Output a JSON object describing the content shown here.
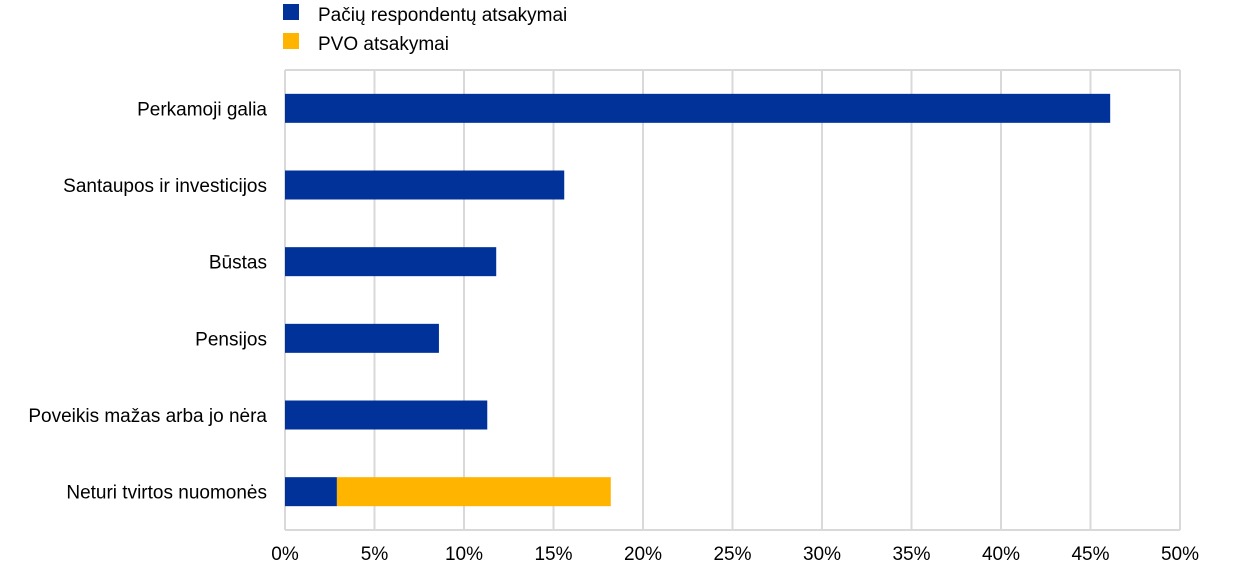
{
  "chart_data": {
    "type": "bar",
    "orientation": "horizontal",
    "stacked": true,
    "categories": [
      "Perkamoji galia",
      "Santaupos ir investicijos",
      "Būstas",
      "Pensijos",
      "Poveikis mažas arba jo nėra",
      "Neturi tvirtos nuomonės"
    ],
    "series": [
      {
        "name": "Pačių respondentų  atsakymai",
        "color": "#003299",
        "values": [
          46.1,
          15.6,
          11.8,
          8.6,
          11.3,
          2.9
        ]
      },
      {
        "name": "PVO atsakymai",
        "color": "#FFB400",
        "values": [
          0,
          0,
          0,
          0,
          0,
          15.3
        ]
      }
    ],
    "xlim": [
      0,
      50
    ],
    "xticks": [
      "0%",
      "5%",
      "10%",
      "15%",
      "20%",
      "25%",
      "30%",
      "35%",
      "40%",
      "45%",
      "50%"
    ],
    "grid": true,
    "legend": "top-left"
  }
}
